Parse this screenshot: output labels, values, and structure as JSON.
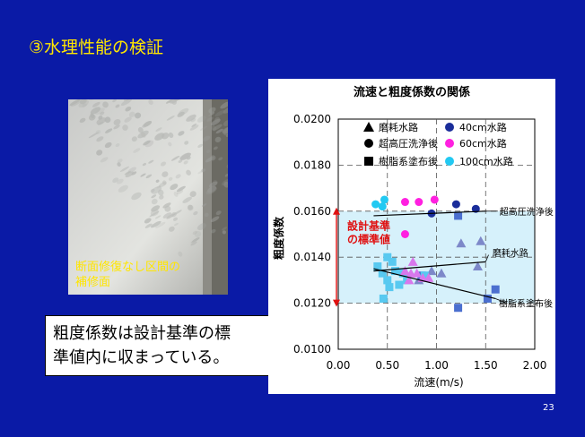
{
  "slide": {
    "title": "③水理性能の検証",
    "photo_caption_line1": "断面修復なし区間の",
    "photo_caption_line2": "補修面",
    "note_line1": "粗度係数は設計基準の標",
    "note_line2": "準値内に収まっている。",
    "page_number": "23",
    "colors": {
      "background": "#0a1aa6",
      "title": "#ffe600",
      "caption": "#ffe600"
    }
  },
  "chart_data": {
    "type": "scatter",
    "title": "流速と粗度係数の関係",
    "xlabel": "流速(m/s)",
    "ylabel": "粗度係数",
    "xlim": [
      0.0,
      2.0
    ],
    "ylim": [
      0.01,
      0.02
    ],
    "x_ticks": [
      "0.00",
      "0.50",
      "1.00",
      "1.50",
      "2.00"
    ],
    "y_ticks": [
      "0.0100",
      "0.0120",
      "0.0140",
      "0.0160",
      "0.0180",
      "0.0200"
    ],
    "grid": "dashed",
    "legend_position": "top",
    "design_range_label_line1": "設計基準",
    "design_range_label_line2": "の標準値",
    "design_range": [
      0.012,
      0.016
    ],
    "series": [
      {
        "name": "磨耗水路",
        "marker": "triangle",
        "color": "#000000",
        "points": []
      },
      {
        "name": "超高圧洗浄後",
        "marker": "circle",
        "color": "#000000",
        "points": []
      },
      {
        "name": "樹脂系塗布後",
        "marker": "square",
        "color": "#000000",
        "points": []
      },
      {
        "name": "40cm水路",
        "marker": "circle",
        "color": "#1a2d9a",
        "points": [
          [
            0.95,
            0.0159
          ],
          [
            1.2,
            0.0163
          ],
          [
            1.4,
            0.0161
          ]
        ]
      },
      {
        "name": "60cm水路",
        "marker": "circle",
        "color": "#ff20e0",
        "points": [
          [
            0.68,
            0.0164
          ],
          [
            0.82,
            0.0164
          ],
          [
            0.98,
            0.0165
          ],
          [
            0.68,
            0.015
          ]
        ]
      },
      {
        "name": "100cm水路",
        "marker": "circle",
        "color": "#22c9f2",
        "points": [
          [
            0.38,
            0.0163
          ],
          [
            0.45,
            0.0162
          ],
          [
            0.47,
            0.0165
          ]
        ]
      },
      {
        "name": "",
        "marker": "triangle",
        "color": "#7d88c9",
        "points": [
          [
            0.82,
            0.013
          ],
          [
            0.95,
            0.0134
          ],
          [
            1.05,
            0.0133
          ],
          [
            1.25,
            0.0146
          ],
          [
            1.45,
            0.0147
          ],
          [
            1.42,
            0.0136
          ]
        ]
      },
      {
        "name": "",
        "marker": "square",
        "color": "#4b6fcf",
        "points": [
          [
            1.6,
            0.0126
          ],
          [
            1.52,
            0.0122
          ],
          [
            1.22,
            0.0118
          ],
          [
            0.85,
            0.0132
          ],
          [
            1.22,
            0.0158
          ]
        ]
      },
      {
        "name": "",
        "marker": "square",
        "color": "#58c9f0",
        "points": [
          [
            0.4,
            0.0136
          ],
          [
            0.45,
            0.0133
          ],
          [
            0.5,
            0.013
          ],
          [
            0.52,
            0.0127
          ],
          [
            0.58,
            0.0134
          ],
          [
            0.62,
            0.0128
          ],
          [
            0.66,
            0.0133
          ],
          [
            0.7,
            0.013
          ],
          [
            0.46,
            0.0122
          ],
          [
            0.5,
            0.014
          ],
          [
            0.55,
            0.0138
          ],
          [
            0.88,
            0.0132
          ]
        ]
      },
      {
        "name": "",
        "marker": "triangle",
        "color": "#d878ec",
        "points": [
          [
            0.68,
            0.0134
          ],
          [
            0.72,
            0.013
          ],
          [
            0.76,
            0.0138
          ],
          [
            0.8,
            0.0133
          ],
          [
            0.86,
            0.0131
          ],
          [
            0.92,
            0.0131
          ],
          [
            0.74,
            0.0133
          ]
        ]
      }
    ],
    "trend_lines": [
      {
        "name": "超高圧洗浄後",
        "from": [
          0.36,
          0.0158
        ],
        "to": [
          1.5,
          0.016
        ]
      },
      {
        "name": "磨耗水路",
        "from": [
          0.36,
          0.0134
        ],
        "to": [
          1.5,
          0.0138
        ]
      },
      {
        "name": "樹脂系塗布後",
        "from": [
          0.36,
          0.0135
        ],
        "to": [
          1.6,
          0.0122
        ]
      }
    ]
  }
}
